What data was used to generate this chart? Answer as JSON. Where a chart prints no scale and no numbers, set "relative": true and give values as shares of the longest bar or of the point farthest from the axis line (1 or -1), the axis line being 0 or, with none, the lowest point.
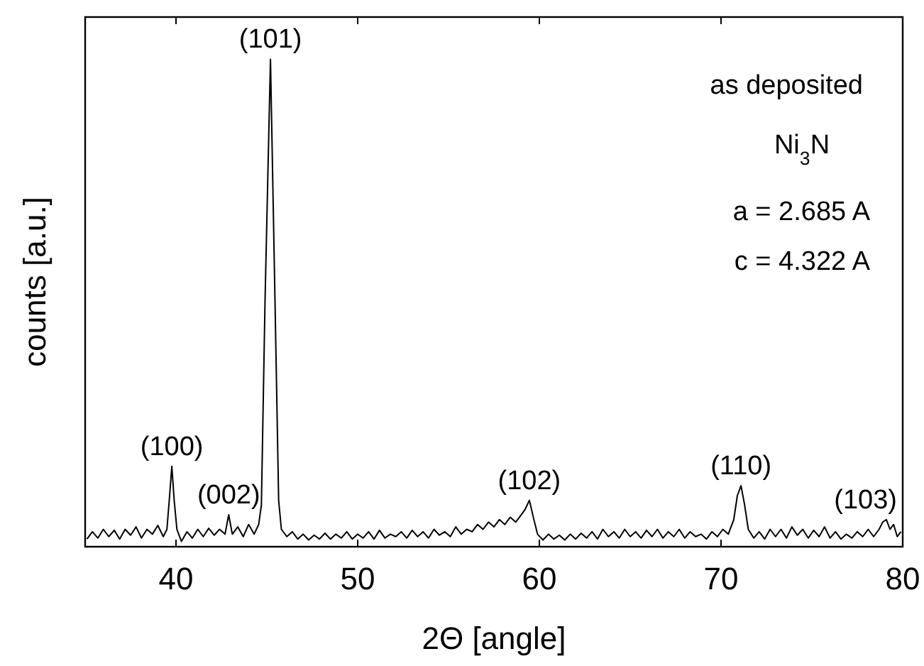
{
  "chart_data": {
    "type": "line",
    "relative": true,
    "xlabel": "2Θ [angle]",
    "ylabel": "counts [a.u.]",
    "xlim": [
      35,
      80
    ],
    "xticks": [
      40,
      50,
      60,
      70,
      80
    ],
    "grid": false,
    "line_style": "solid",
    "series": [
      {
        "color": "#000000",
        "x": [
          35.1,
          35.4,
          35.7,
          36.0,
          36.3,
          36.6,
          36.9,
          37.2,
          37.5,
          37.8,
          38.1,
          38.4,
          38.7,
          39.0,
          39.3,
          39.5,
          39.65,
          39.77,
          39.9,
          40.05,
          40.3,
          40.6,
          40.9,
          41.2,
          41.5,
          41.8,
          42.1,
          42.4,
          42.7,
          42.9,
          43.1,
          43.4,
          43.7,
          44.0,
          44.3,
          44.55,
          44.7,
          44.9,
          45.2,
          45.45,
          45.65,
          45.8,
          46.1,
          46.4,
          46.7,
          47.0,
          47.3,
          47.6,
          47.9,
          48.2,
          48.5,
          48.8,
          49.1,
          49.4,
          49.7,
          50.0,
          50.3,
          50.6,
          50.9,
          51.2,
          51.5,
          51.8,
          52.1,
          52.4,
          52.7,
          53.0,
          53.3,
          53.6,
          53.9,
          54.2,
          54.5,
          54.8,
          55.1,
          55.4,
          55.7,
          56.0,
          56.3,
          56.6,
          56.9,
          57.2,
          57.5,
          57.8,
          58.1,
          58.4,
          58.7,
          59.0,
          59.2,
          59.45,
          59.7,
          59.9,
          60.2,
          60.5,
          60.8,
          61.1,
          61.4,
          61.7,
          62.0,
          62.3,
          62.6,
          62.9,
          63.2,
          63.5,
          63.8,
          64.1,
          64.4,
          64.7,
          65.0,
          65.3,
          65.6,
          65.9,
          66.2,
          66.5,
          66.8,
          67.1,
          67.4,
          67.7,
          68.0,
          68.3,
          68.6,
          68.9,
          69.2,
          69.5,
          69.8,
          70.1,
          70.4,
          70.7,
          70.9,
          71.1,
          71.3,
          71.5,
          71.8,
          72.1,
          72.4,
          72.7,
          73.0,
          73.3,
          73.6,
          73.9,
          74.2,
          74.5,
          74.8,
          75.1,
          75.4,
          75.7,
          76.0,
          76.3,
          76.6,
          76.9,
          77.2,
          77.5,
          77.8,
          78.1,
          78.4,
          78.7,
          78.9,
          79.1,
          79.3,
          79.5,
          79.7,
          79.9
        ],
        "values": [
          0.01,
          0.025,
          0.012,
          0.03,
          0.015,
          0.028,
          0.01,
          0.03,
          0.018,
          0.035,
          0.012,
          0.03,
          0.02,
          0.038,
          0.015,
          0.03,
          0.1,
          0.16,
          0.09,
          0.03,
          0.005,
          0.025,
          0.012,
          0.03,
          0.015,
          0.032,
          0.018,
          0.03,
          0.02,
          0.06,
          0.02,
          0.035,
          0.015,
          0.04,
          0.02,
          0.04,
          0.08,
          0.5,
          1,
          0.5,
          0.09,
          0.03,
          0.015,
          0.025,
          0.01,
          0.02,
          0.008,
          0.018,
          0.01,
          0.022,
          0.01,
          0.02,
          0.012,
          0.025,
          0.01,
          0.02,
          0.012,
          0.025,
          0.01,
          0.028,
          0.012,
          0.02,
          0.015,
          0.025,
          0.012,
          0.028,
          0.015,
          0.025,
          0.012,
          0.03,
          0.018,
          0.025,
          0.015,
          0.035,
          0.02,
          0.03,
          0.025,
          0.04,
          0.03,
          0.045,
          0.035,
          0.05,
          0.04,
          0.055,
          0.045,
          0.06,
          0.07,
          0.09,
          0.05,
          0.02,
          0.008,
          0.02,
          0.01,
          0.018,
          0.008,
          0.02,
          0.01,
          0.022,
          0.012,
          0.025,
          0.01,
          0.03,
          0.015,
          0.025,
          0.012,
          0.03,
          0.015,
          0.025,
          0.012,
          0.028,
          0.015,
          0.03,
          0.012,
          0.025,
          0.015,
          0.03,
          0.012,
          0.025,
          0.015,
          0.02,
          0.01,
          0.025,
          0.015,
          0.03,
          0.02,
          0.05,
          0.1,
          0.12,
          0.08,
          0.03,
          0.012,
          0.025,
          0.01,
          0.03,
          0.015,
          0.03,
          0.012,
          0.035,
          0.018,
          0.03,
          0.012,
          0.028,
          0.015,
          0.035,
          0.012,
          0.025,
          0.01,
          0.02,
          0.012,
          0.025,
          0.015,
          0.03,
          0.015,
          0.03,
          0.045,
          0.05,
          0.03,
          0.04,
          0.015,
          0.025
        ]
      }
    ],
    "annotations": [
      {
        "text": "(100)",
        "x": 39.77,
        "y": 0.16
      },
      {
        "text": "(002)",
        "x": 42.9,
        "y": 0.06
      },
      {
        "text": "(101)",
        "x": 45.2,
        "y": 1
      },
      {
        "text": "(102)",
        "x": 59.45,
        "y": 0.09
      },
      {
        "text": "(110)",
        "x": 71.1,
        "y": 0.12
      },
      {
        "text": "(103)",
        "x": 79.1,
        "y": 0.05
      },
      "as deposited",
      "Ni$_{3}$N",
      "a = 2.685 A",
      "c = 4.322 A"
    ]
  }
}
